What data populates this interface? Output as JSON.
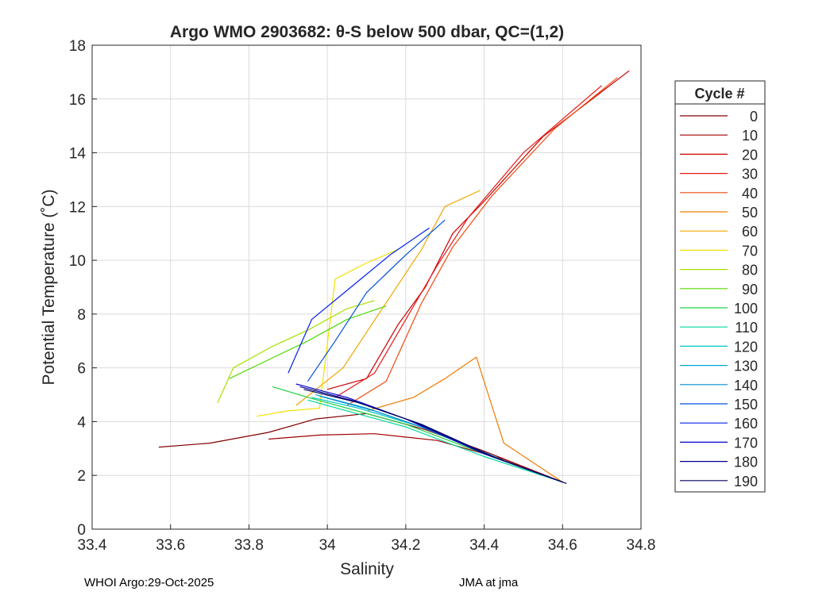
{
  "chart_data": {
    "type": "line",
    "title": "Argo WMO 2903682: θ-S below 500 dbar,  QC=(1,2)",
    "xlabel": "Salinity",
    "ylabel": "Potential Temperature (˚C)",
    "xlim": [
      33.4,
      34.8
    ],
    "ylim": [
      0,
      18
    ],
    "xticks": [
      33.4,
      33.6,
      33.8,
      34,
      34.2,
      34.4,
      34.6,
      34.8
    ],
    "xtick_labels": [
      "33.4",
      "33.6",
      "33.8",
      "34",
      "34.2",
      "34.4",
      "34.6",
      "34.8"
    ],
    "yticks": [
      0,
      2,
      4,
      6,
      8,
      10,
      12,
      14,
      16,
      18
    ],
    "ytick_labels": [
      "0",
      "2",
      "4",
      "6",
      "8",
      "10",
      "12",
      "14",
      "16",
      "18"
    ],
    "grid": true,
    "legend_title": "Cycle #",
    "legend_position": "right-outside",
    "series": [
      {
        "name": "0",
        "color": "#800000",
        "points": [
          [
            33.57,
            3.05
          ],
          [
            33.7,
            3.2
          ],
          [
            33.85,
            3.6
          ],
          [
            33.97,
            4.1
          ],
          [
            34.1,
            4.3
          ],
          [
            34.25,
            3.7
          ],
          [
            34.4,
            2.9
          ],
          [
            34.6,
            1.75
          ]
        ]
      },
      {
        "name": "10",
        "color": "#a00000",
        "points": [
          [
            33.85,
            3.35
          ],
          [
            33.98,
            3.5
          ],
          [
            34.12,
            3.55
          ],
          [
            34.28,
            3.3
          ],
          [
            34.45,
            2.6
          ],
          [
            34.6,
            1.75
          ]
        ]
      },
      {
        "name": "20",
        "color": "#cc0000",
        "points": [
          [
            34.0,
            5.2
          ],
          [
            34.1,
            5.6
          ],
          [
            34.18,
            7.6
          ],
          [
            34.25,
            9.0
          ],
          [
            34.32,
            11.0
          ],
          [
            34.4,
            12.2
          ],
          [
            34.55,
            14.6
          ],
          [
            34.77,
            17.05
          ]
        ]
      },
      {
        "name": "30",
        "color": "#e81818",
        "points": [
          [
            34.02,
            4.9
          ],
          [
            34.12,
            5.8
          ],
          [
            34.2,
            7.8
          ],
          [
            34.28,
            9.8
          ],
          [
            34.36,
            11.6
          ],
          [
            34.5,
            14.0
          ],
          [
            34.7,
            16.5
          ]
        ]
      },
      {
        "name": "40",
        "color": "#f04a10",
        "points": [
          [
            34.05,
            4.6
          ],
          [
            34.15,
            5.5
          ],
          [
            34.24,
            8.4
          ],
          [
            34.32,
            10.5
          ],
          [
            34.42,
            12.4
          ],
          [
            34.58,
            14.9
          ],
          [
            34.74,
            16.8
          ]
        ]
      },
      {
        "name": "50",
        "color": "#f27a00",
        "points": [
          [
            34.1,
            4.4
          ],
          [
            34.22,
            4.9
          ],
          [
            34.3,
            5.6
          ],
          [
            34.38,
            6.4
          ],
          [
            34.45,
            3.2
          ],
          [
            34.6,
            1.75
          ]
        ]
      },
      {
        "name": "60",
        "color": "#f0a500",
        "points": [
          [
            33.92,
            4.6
          ],
          [
            34.04,
            6.0
          ],
          [
            34.14,
            8.2
          ],
          [
            34.24,
            10.4
          ],
          [
            34.3,
            12.0
          ],
          [
            34.39,
            12.6
          ]
        ]
      },
      {
        "name": "70",
        "color": "#f5e000",
        "points": [
          [
            33.82,
            4.2
          ],
          [
            33.9,
            4.4
          ],
          [
            33.98,
            4.5
          ],
          [
            34.02,
            9.3
          ],
          [
            34.1,
            9.9
          ],
          [
            34.18,
            10.4
          ]
        ]
      },
      {
        "name": "80",
        "color": "#a8e000",
        "points": [
          [
            33.72,
            4.7
          ],
          [
            33.76,
            6.0
          ],
          [
            33.86,
            6.8
          ],
          [
            33.95,
            7.4
          ],
          [
            34.05,
            8.2
          ],
          [
            34.12,
            8.5
          ]
        ]
      },
      {
        "name": "90",
        "color": "#50d800",
        "points": [
          [
            33.75,
            5.6
          ],
          [
            33.85,
            6.3
          ],
          [
            33.95,
            7.0
          ],
          [
            34.05,
            7.8
          ],
          [
            34.15,
            8.3
          ]
        ]
      },
      {
        "name": "100",
        "color": "#20d040",
        "points": [
          [
            33.86,
            5.3
          ],
          [
            33.95,
            4.9
          ],
          [
            34.05,
            4.5
          ],
          [
            34.2,
            3.9
          ],
          [
            34.4,
            2.8
          ],
          [
            34.6,
            1.75
          ]
        ]
      },
      {
        "name": "110",
        "color": "#00d8a0",
        "points": [
          [
            33.95,
            4.8
          ],
          [
            34.05,
            4.4
          ],
          [
            34.2,
            3.8
          ],
          [
            34.4,
            2.7
          ],
          [
            34.6,
            1.75
          ]
        ]
      },
      {
        "name": "120",
        "color": "#00c8c8",
        "points": [
          [
            33.96,
            4.9
          ],
          [
            34.08,
            4.5
          ],
          [
            34.24,
            3.8
          ],
          [
            34.42,
            2.7
          ],
          [
            34.6,
            1.75
          ]
        ]
      },
      {
        "name": "130",
        "color": "#00a8d8",
        "points": [
          [
            33.97,
            5.0
          ],
          [
            34.1,
            4.5
          ],
          [
            34.26,
            3.7
          ],
          [
            34.44,
            2.6
          ],
          [
            34.6,
            1.75
          ]
        ]
      },
      {
        "name": "140",
        "color": "#0090d0",
        "points": [
          [
            33.98,
            4.95
          ],
          [
            34.12,
            4.4
          ],
          [
            34.28,
            3.6
          ],
          [
            34.45,
            2.55
          ],
          [
            34.6,
            1.75
          ]
        ]
      },
      {
        "name": "150",
        "color": "#0050e0",
        "points": [
          [
            33.95,
            5.5
          ],
          [
            34.02,
            7.0
          ],
          [
            34.1,
            8.8
          ],
          [
            34.2,
            10.2
          ],
          [
            34.3,
            11.5
          ]
        ]
      },
      {
        "name": "160",
        "color": "#0020f0",
        "points": [
          [
            33.9,
            5.8
          ],
          [
            33.96,
            7.8
          ],
          [
            34.06,
            9.0
          ],
          [
            34.16,
            10.2
          ],
          [
            34.26,
            11.2
          ]
        ]
      },
      {
        "name": "170",
        "color": "#0000c8",
        "points": [
          [
            33.92,
            5.4
          ],
          [
            34.05,
            4.9
          ],
          [
            34.2,
            4.1
          ],
          [
            34.4,
            2.8
          ],
          [
            34.6,
            1.75
          ]
        ]
      },
      {
        "name": "180",
        "color": "#00008c",
        "points": [
          [
            33.93,
            5.3
          ],
          [
            34.06,
            4.8
          ],
          [
            34.22,
            4.0
          ],
          [
            34.42,
            2.7
          ],
          [
            34.6,
            1.75
          ]
        ]
      },
      {
        "name": "190",
        "color": "#000060",
        "points": [
          [
            33.94,
            5.2
          ],
          [
            34.08,
            4.7
          ],
          [
            34.24,
            3.9
          ],
          [
            34.43,
            2.65
          ],
          [
            34.61,
            1.7
          ]
        ]
      }
    ]
  },
  "footer": {
    "left": "WHOI Argo:29-Oct-2025",
    "right": "JMA at jma"
  }
}
